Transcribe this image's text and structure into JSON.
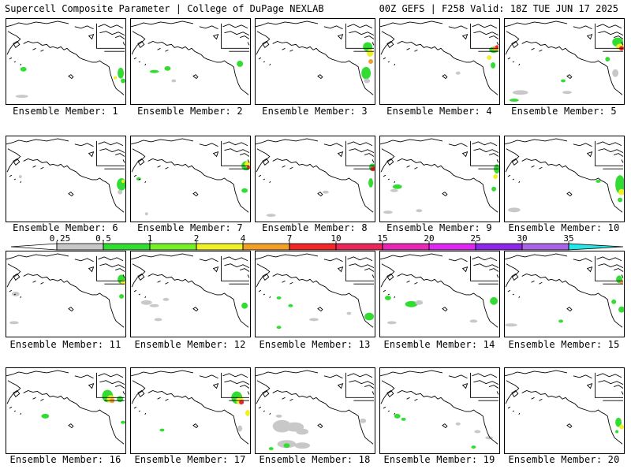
{
  "header": {
    "left": "Supercell Composite Parameter | College of DuPage NEXLAB",
    "right": "00Z GEFS | F258 Valid: 18Z TUE JUN 17 2025"
  },
  "panels": [
    {
      "label": "Ensemble Member: 1"
    },
    {
      "label": "Ensemble Member: 2"
    },
    {
      "label": "Ensemble Member: 3"
    },
    {
      "label": "Ensemble Member: 4"
    },
    {
      "label": "Ensemble Member: 5"
    },
    {
      "label": "Ensemble Member: 6"
    },
    {
      "label": "Ensemble Member: 7"
    },
    {
      "label": "Ensemble Member: 8"
    },
    {
      "label": "Ensemble Member: 9"
    },
    {
      "label": "Ensemble Member: 10"
    },
    {
      "label": "Ensemble Member: 11"
    },
    {
      "label": "Ensemble Member: 12"
    },
    {
      "label": "Ensemble Member: 13"
    },
    {
      "label": "Ensemble Member: 14"
    },
    {
      "label": "Ensemble Member: 15"
    },
    {
      "label": "Ensemble Member: 16"
    },
    {
      "label": "Ensemble Member: 17"
    },
    {
      "label": "Ensemble Member: 18"
    },
    {
      "label": "Ensemble Member: 19"
    },
    {
      "label": "Ensemble Member: 20"
    }
  ],
  "legend": {
    "tick_labels": [
      "0.25",
      "0.5",
      "1",
      "2",
      "4",
      "7",
      "10",
      "15",
      "20",
      "25",
      "30",
      "35"
    ],
    "colors": [
      "#c8c8c8",
      "#32dc32",
      "#78f028",
      "#f0f028",
      "#f0a028",
      "#f02828",
      "#e6285a",
      "#e628b4",
      "#dc28f0",
      "#8c28e6",
      "#aa64e6",
      "#28e6e6"
    ]
  }
}
